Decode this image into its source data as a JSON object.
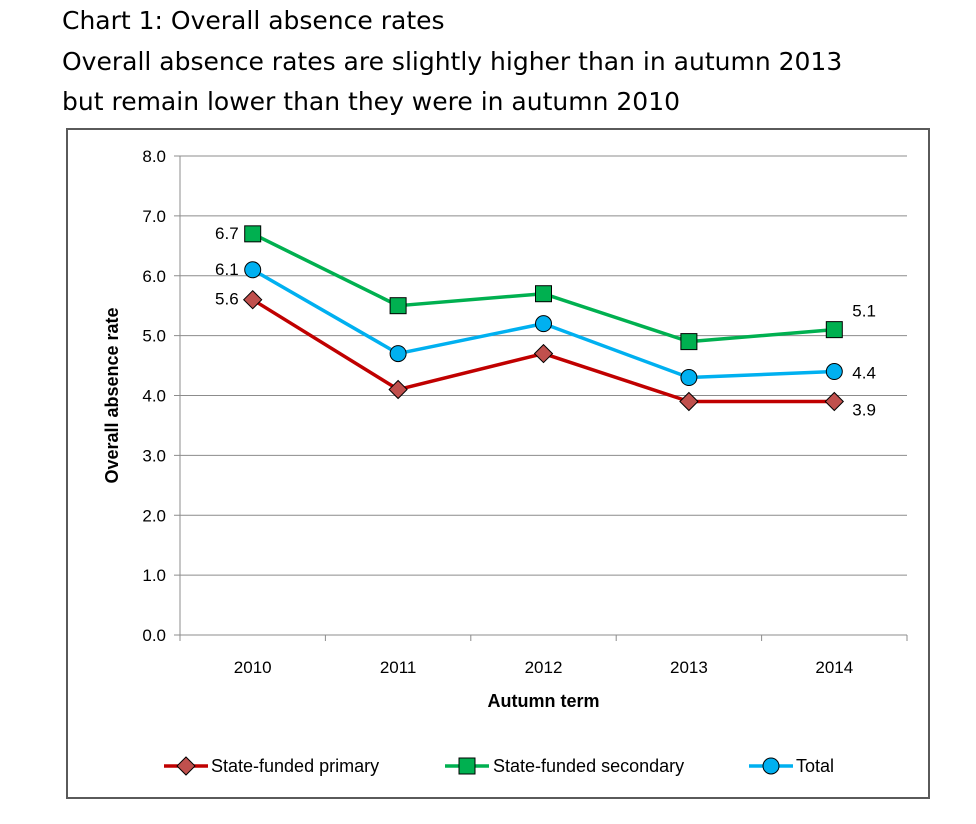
{
  "heading": {
    "line1": "Chart 1: Overall absence rates",
    "line2": "Overall absence rates are slightly higher than in autumn 2013",
    "line3": "but remain lower than they were in autumn 2010"
  },
  "chart_data": {
    "type": "line",
    "title": "Chart 1: Overall absence rates",
    "subtitle": "Overall absence rates are slightly higher than in autumn 2013 but remain lower than they were in autumn 2010",
    "xlabel": "Autumn term",
    "ylabel": "Overall absence rate",
    "categories": [
      "2010",
      "2011",
      "2012",
      "2013",
      "2014"
    ],
    "ylim": [
      0,
      8
    ],
    "yticks": [
      "0.0",
      "1.0",
      "2.0",
      "3.0",
      "4.0",
      "5.0",
      "6.0",
      "7.0",
      "8.0"
    ],
    "grid": true,
    "legend_position": "bottom",
    "series": [
      {
        "name": "State-funded primary",
        "color": "#c00000",
        "marker": "diamond",
        "marker_fill": "#c0504d",
        "values": [
          5.6,
          4.1,
          4.7,
          3.9,
          3.9
        ],
        "labels": [
          "5.6",
          "",
          "",
          "",
          "3.9"
        ]
      },
      {
        "name": "State-funded secondary",
        "color": "#00b050",
        "marker": "square",
        "marker_fill": "#00b050",
        "values": [
          6.7,
          5.5,
          5.7,
          4.9,
          5.1
        ],
        "labels": [
          "6.7",
          "",
          "",
          "",
          "5.1"
        ]
      },
      {
        "name": "Total",
        "color": "#00b0f0",
        "marker": "circle",
        "marker_fill": "#00b0f0",
        "values": [
          6.1,
          4.7,
          5.2,
          4.3,
          4.4
        ],
        "labels": [
          "6.1",
          "",
          "",
          "",
          "4.4"
        ]
      }
    ]
  }
}
